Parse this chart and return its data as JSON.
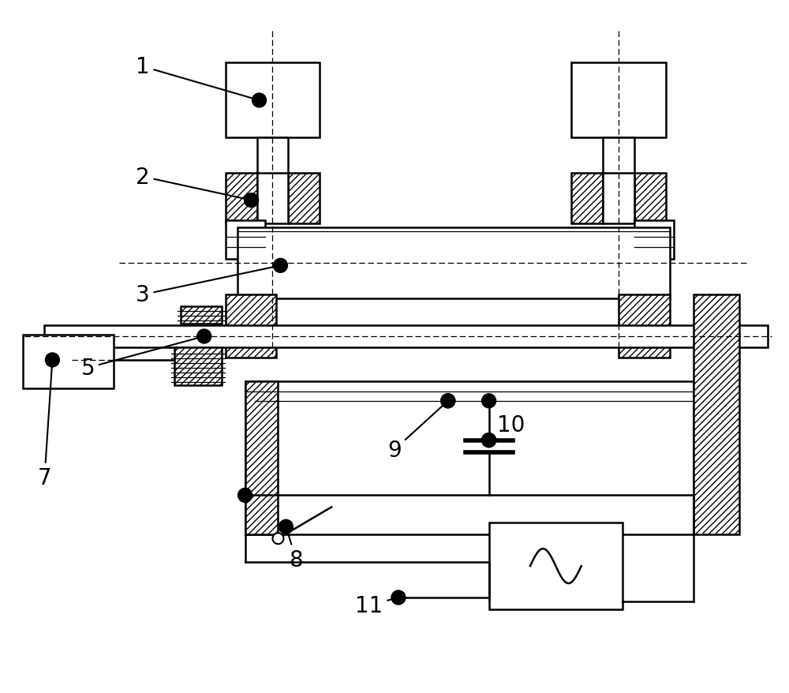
{
  "bg": "#ffffff",
  "lw": 1.8,
  "tlw": 0.9,
  "fig_w": 10.0,
  "fig_h": 8.79,
  "dpi": 100,
  "fs": 20
}
